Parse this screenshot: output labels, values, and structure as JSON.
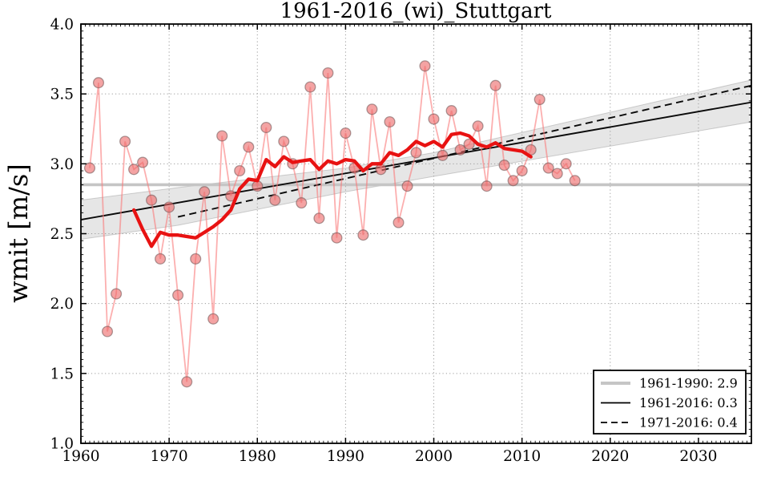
{
  "chart_data": {
    "type": "line",
    "title": "1961-2016_(wi)_Stuttgart",
    "xlabel": "",
    "ylabel": "wmit [m/s]",
    "xlim": [
      1960,
      2036
    ],
    "ylim": [
      1.0,
      4.0
    ],
    "xticks": [
      1960,
      1970,
      1980,
      1990,
      2000,
      2010,
      2020,
      2030
    ],
    "yticks": [
      1.0,
      1.5,
      2.0,
      2.5,
      3.0,
      3.5,
      4.0
    ],
    "grid": true,
    "series": [
      {
        "name": "annual-winter-mean-wind",
        "type": "scatter+line",
        "start_year": 1961,
        "values": [
          2.97,
          3.58,
          1.8,
          2.07,
          3.16,
          2.96,
          3.01,
          2.74,
          2.32,
          2.69,
          2.06,
          1.44,
          2.32,
          2.8,
          1.89,
          3.2,
          2.77,
          2.95,
          3.12,
          2.84,
          3.26,
          2.74,
          3.16,
          3.0,
          2.72,
          3.55,
          2.61,
          3.65,
          2.47,
          3.22,
          2.97,
          2.49,
          3.39,
          2.96,
          3.3,
          2.58,
          2.84,
          3.08,
          3.7,
          3.32,
          3.06,
          3.38,
          3.1,
          3.14,
          3.27,
          2.84,
          3.56,
          2.99,
          2.88,
          2.95,
          3.1,
          3.46,
          2.97,
          2.93,
          3.0,
          2.88
        ]
      },
      {
        "name": "running-mean-11yr",
        "type": "line",
        "start_year": 1966,
        "values": [
          2.67,
          2.53,
          2.41,
          2.51,
          2.49,
          2.49,
          2.48,
          2.47,
          2.51,
          2.55,
          2.6,
          2.67,
          2.82,
          2.89,
          2.88,
          3.03,
          2.98,
          3.05,
          3.01,
          3.02,
          3.03,
          2.96,
          3.02,
          3.0,
          3.03,
          3.02,
          2.95,
          3.0,
          3.0,
          3.08,
          3.06,
          3.1,
          3.16,
          3.13,
          3.16,
          3.12,
          3.21,
          3.22,
          3.2,
          3.14,
          3.12,
          3.15,
          3.11,
          3.1,
          3.09,
          3.05
        ]
      }
    ],
    "reference_lines": [
      {
        "name": "mean-1961-1990",
        "style": "gray-thick",
        "y": 2.85
      },
      {
        "name": "trend-1961-2016",
        "style": "black-solid",
        "x": [
          1960,
          2036
        ],
        "y": [
          2.6,
          3.44
        ]
      },
      {
        "name": "trend-1971-2016",
        "style": "black-dashed",
        "x": [
          1971,
          2036
        ],
        "y": [
          2.62,
          3.56
        ]
      }
    ],
    "confidence_band": {
      "x": [
        1960,
        1971,
        1990,
        2000,
        2036
      ],
      "upper": [
        2.74,
        2.83,
        2.97,
        3.08,
        3.6
      ],
      "lower": [
        2.46,
        2.56,
        2.8,
        2.91,
        3.3
      ]
    },
    "legend": {
      "position": "lower right",
      "entries": [
        {
          "label": "1961-1990: 2.9",
          "sample": "gray-thick"
        },
        {
          "label": "1961-2016: 0.3",
          "sample": "black-solid"
        },
        {
          "label": "1971-2016: 0.4",
          "sample": "black-dashed"
        }
      ]
    }
  },
  "colors": {
    "annual_marker_fill": "#ee6a6a",
    "annual_marker_edge": "#6b5353",
    "annual_line": "#fa7a7a",
    "running_mean": "#e81212",
    "trend_black": "#0a0a0a",
    "reference_gray": "#c5c5c5",
    "band_fill": "#a0a0a0",
    "band_edge": "#8c8c8c",
    "grid": "#8a8a8a",
    "axes": "#000000",
    "legend_background": "#ffffff"
  }
}
